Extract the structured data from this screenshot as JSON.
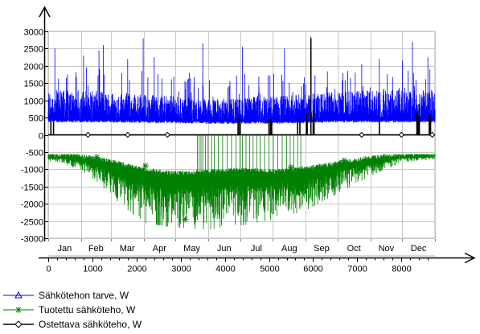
{
  "chart_data": {
    "type": "line",
    "title": "",
    "xlabel": "",
    "ylabel": "",
    "xlim": [
      0,
      8760
    ],
    "ylim": [
      -3000,
      3000
    ],
    "x_ticks": [
      0,
      1000,
      2000,
      3000,
      4000,
      5000,
      6000,
      7000,
      8000
    ],
    "x_tick_labels": [
      "0",
      "1000",
      "2000",
      "3000",
      "4000",
      "5000",
      "6000",
      "7000",
      "8000"
    ],
    "y_ticks": [
      3000,
      2500,
      2000,
      1500,
      1000,
      500,
      0,
      -500,
      -1000,
      -1500,
      -2000,
      -2500,
      -3000
    ],
    "y_tick_labels": [
      "3000",
      "2500",
      "2000",
      "1500",
      "1000",
      "500",
      "0",
      "-500",
      "-1000",
      "-1500",
      "-2000",
      "-2500",
      "-3000"
    ],
    "months": [
      "Jan",
      "Feb",
      "Mar",
      "Apr",
      "May",
      "Jun",
      "Jul",
      "Aug",
      "Sep",
      "Oct",
      "Nov",
      "Dec"
    ],
    "month_boundaries": [
      0,
      744,
      1416,
      2160,
      2880,
      3624,
      4344,
      5088,
      5832,
      6552,
      7296,
      8016,
      8760
    ],
    "grid": true,
    "legend_position": "bottom-left",
    "series": [
      {
        "name": "Sähkötehon tarve, W",
        "color": "#0000ff",
        "marker": "triangle",
        "baseline_x": [
          0,
          744,
          1416,
          2160,
          2880,
          3624,
          4344,
          5088,
          5832,
          6552,
          7296,
          8016,
          8760
        ],
        "baseline_values": [
          400,
          400,
          400,
          380,
          380,
          360,
          360,
          360,
          380,
          400,
          400,
          400,
          400
        ],
        "typical_peak_values": [
          1100,
          1100,
          1050,
          1000,
          950,
          900,
          900,
          950,
          1000,
          1050,
          1100,
          1150,
          1100
        ],
        "maximum": 2850,
        "description_points": [
          [
            150,
            2500
          ],
          [
            800,
            2300
          ],
          [
            1150,
            2450
          ],
          [
            1250,
            2600
          ],
          [
            1800,
            2200
          ],
          [
            2150,
            2800
          ],
          [
            2400,
            2250
          ],
          [
            3200,
            1800
          ],
          [
            3500,
            2650
          ],
          [
            4400,
            2550
          ],
          [
            5350,
            2500
          ],
          [
            5950,
            2850
          ],
          [
            7100,
            2050
          ],
          [
            7500,
            2200
          ],
          [
            8020,
            2150
          ],
          [
            8250,
            2700
          ],
          [
            8600,
            2250
          ]
        ]
      },
      {
        "name": "Tuotettu sähköteho, W",
        "color": "#008000",
        "marker": "asterisk",
        "baseline_x": [
          0,
          744,
          1416,
          2160,
          2880,
          3624,
          4344,
          5088,
          5832,
          6552,
          7296,
          8016,
          8760
        ],
        "baseline_values": [
          -600,
          -650,
          -800,
          -1050,
          -1150,
          -1100,
          -1050,
          -1100,
          -1000,
          -850,
          -700,
          -620,
          -600
        ],
        "minimum_envelope": [
          -750,
          -1000,
          -1800,
          -2550,
          -2700,
          -2750,
          -2650,
          -2450,
          -2200,
          -1700,
          -1200,
          -800,
          -700
        ],
        "marker_points": [
          [
            1100,
            -650
          ],
          [
            2200,
            -900
          ],
          [
            3100,
            -2450
          ],
          [
            3900,
            -1100
          ],
          [
            5500,
            -950
          ],
          [
            6700,
            -750
          ],
          [
            7600,
            -700
          ]
        ],
        "zero_spike_x": [
          3380,
          3420,
          3460,
          3500,
          3560,
          3620,
          3700,
          3760,
          3850,
          3950,
          4050,
          4150,
          4250,
          4340,
          4400,
          4480,
          4560,
          4640,
          4720,
          4800,
          4900,
          5000,
          5100,
          5200,
          5300,
          5400,
          5480,
          5560,
          5650,
          5720
        ]
      },
      {
        "name": "Ostettava sähköteho, W",
        "color": "#000000",
        "marker": "diamond",
        "baseline_value": 0,
        "marker_points": [
          [
            900,
            0
          ],
          [
            1800,
            0
          ],
          [
            2700,
            0
          ],
          [
            7100,
            0
          ],
          [
            8000,
            0
          ],
          [
            8700,
            0
          ]
        ],
        "spike_x": [
          60,
          120,
          4300,
          4340,
          5000,
          5060,
          5650,
          5700,
          5850,
          5950,
          6000,
          6020,
          7500,
          8350,
          8400,
          8630,
          8660
        ],
        "spike_values": [
          400,
          380,
          500,
          420,
          450,
          400,
          500,
          430,
          600,
          2800,
          700,
          500,
          500,
          650,
          900,
          600,
          550
        ]
      }
    ]
  }
}
